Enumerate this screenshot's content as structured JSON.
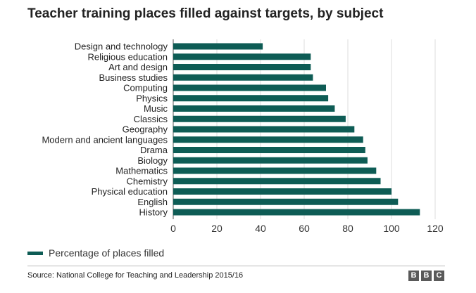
{
  "title": "Teacher training places filled against targets, by subject",
  "legend": {
    "label": "Percentage of places filled"
  },
  "source": "Source: National College for Teaching and Leadership 2015/16",
  "logo": {
    "letters": [
      "B",
      "B",
      "C"
    ]
  },
  "colors": {
    "bar": "#0e5c55",
    "grid": "#dddddd",
    "axis": "#555555",
    "text": "#222222"
  },
  "chart_data": {
    "type": "bar",
    "orientation": "horizontal",
    "categories": [
      "Design and technology",
      "Religious education",
      "Art and design",
      "Business studies",
      "Computing",
      "Physics",
      "Music",
      "Classics",
      "Geography",
      "Modern and ancient languages",
      "Drama",
      "Biology",
      "Mathematics",
      "Chemistry",
      "Physical education",
      "English",
      "History"
    ],
    "series": [
      {
        "name": "Percentage of places filled",
        "values": [
          41,
          63,
          63,
          64,
          70,
          71,
          74,
          79,
          83,
          87,
          88,
          89,
          93,
          95,
          100,
          103,
          113
        ]
      }
    ],
    "xlim": [
      0,
      120
    ],
    "xticks": [
      0,
      20,
      40,
      60,
      80,
      100,
      120
    ],
    "grid": "vertical",
    "legend_position": "bottom-left"
  }
}
